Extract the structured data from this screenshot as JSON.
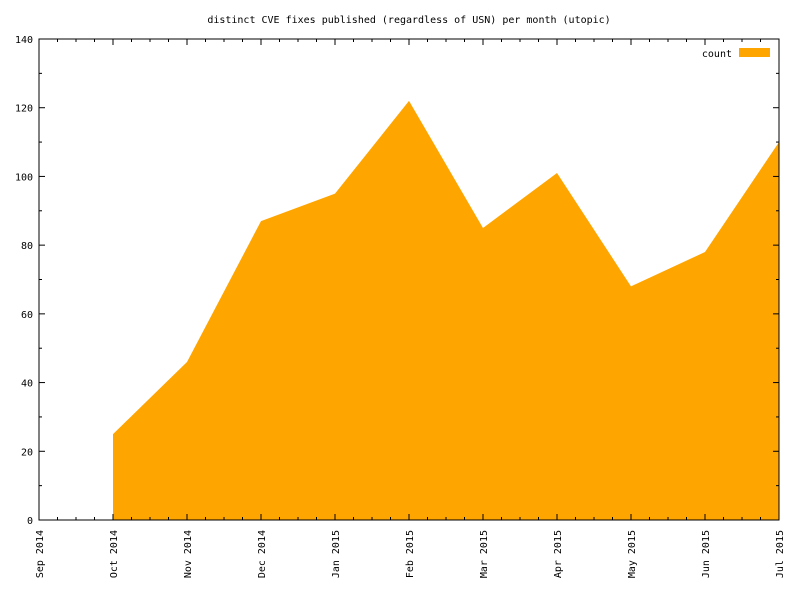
{
  "chart_data": {
    "type": "area",
    "title": "distinct CVE fixes published (regardless of USN) per month (utopic)",
    "xlabel": "",
    "ylabel": "",
    "x_ticks": [
      "Sep 2014",
      "Oct 2014",
      "Nov 2014",
      "Dec 2014",
      "Jan 2015",
      "Feb 2015",
      "Mar 2015",
      "Apr 2015",
      "May 2015",
      "Jun 2015",
      "Jul 2015"
    ],
    "y_ticks": [
      0,
      20,
      40,
      60,
      80,
      100,
      120,
      140
    ],
    "ylim": [
      0,
      140
    ],
    "xlim": [
      "Sep 2014",
      "Jul 2015"
    ],
    "grid": false,
    "legend_position": "top-right",
    "series": [
      {
        "name": "count",
        "color": "#ffa500",
        "x": [
          "Oct 2014",
          "Nov 2014",
          "Dec 2014",
          "Jan 2015",
          "Feb 2015",
          "Mar 2015",
          "Apr 2015",
          "May 2015",
          "Jun 2015",
          "Jul 2015"
        ],
        "values": [
          25,
          46,
          87,
          95,
          122,
          85,
          101,
          68,
          78,
          110
        ]
      }
    ]
  }
}
